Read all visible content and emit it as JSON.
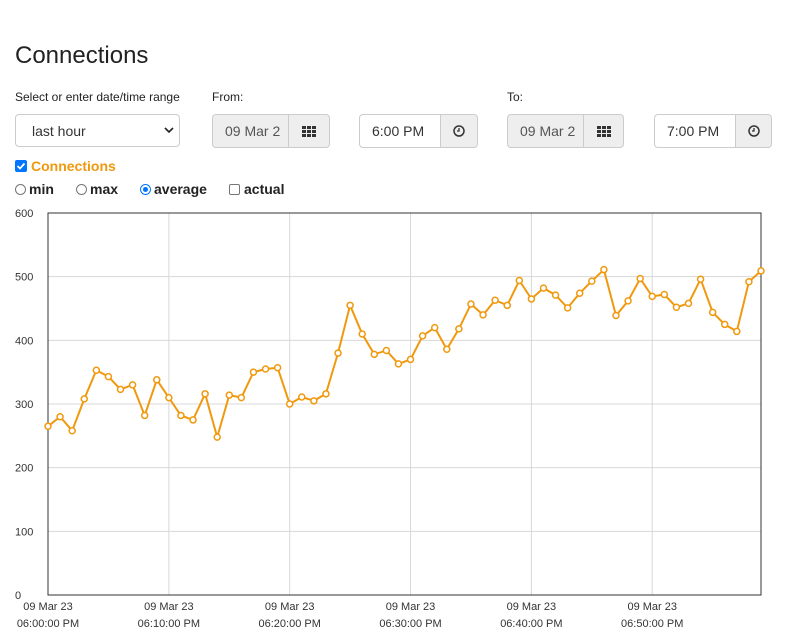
{
  "page": {
    "title": "Connections"
  },
  "range": {
    "label": "Select or enter date/time range",
    "selected": "last hour"
  },
  "from": {
    "label": "From:",
    "date": "09 Mar 2",
    "time": "6:00 PM"
  },
  "to": {
    "label": "To:",
    "date": "09 Mar 2",
    "time": "7:00 PM"
  },
  "series_toggle": {
    "label": "Connections",
    "checked": true
  },
  "modes": {
    "min": "min",
    "max": "max",
    "average": "average",
    "actual": "actual",
    "selected": "average"
  },
  "icons": {
    "calendar": "calendar-grid-icon",
    "clock": "clock-icon",
    "dropdown": "chevron-down-icon"
  },
  "colors": {
    "series": "#f0990e",
    "checkbox": "#0075ff"
  },
  "chart_data": {
    "type": "line",
    "title": "",
    "xlabel": "",
    "ylabel": "",
    "ylim": [
      0,
      600
    ],
    "yticks": [
      "0",
      "100",
      "200",
      "300",
      "400",
      "500",
      "600"
    ],
    "xticks": [
      {
        "date": "09 Mar 23",
        "time": "06:00:00 PM"
      },
      {
        "date": "09 Mar 23",
        "time": "06:10:00 PM"
      },
      {
        "date": "09 Mar 23",
        "time": "06:20:00 PM"
      },
      {
        "date": "09 Mar 23",
        "time": "06:30:00 PM"
      },
      {
        "date": "09 Mar 23",
        "time": "06:40:00 PM"
      },
      {
        "date": "09 Mar 23",
        "time": "06:50:00 PM"
      }
    ],
    "x_minutes_range": [
      0,
      59
    ],
    "grid": true,
    "series": [
      {
        "color": "#f0990e",
        "values": [
          265,
          280,
          258,
          308,
          353,
          343,
          323,
          330,
          282,
          338,
          310,
          282,
          275,
          316,
          248,
          314,
          310,
          350,
          355,
          357,
          300,
          311,
          305,
          316,
          380,
          455,
          410,
          378,
          384,
          363,
          370,
          407,
          420,
          386,
          418,
          457,
          440,
          463,
          455,
          494,
          465,
          482,
          471,
          451,
          474,
          493,
          511,
          439,
          462,
          497,
          469,
          472,
          452,
          458,
          496,
          444,
          425,
          414,
          492,
          509
        ]
      }
    ]
  }
}
